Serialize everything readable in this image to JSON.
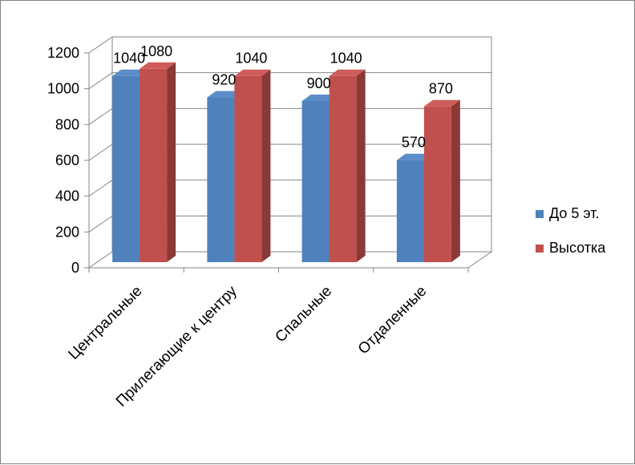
{
  "chart_data": {
    "type": "bar",
    "title": "",
    "xlabel": "",
    "ylabel": "",
    "categories": [
      "Центральные",
      "Прилегающие к центру",
      "Спальные",
      "Отдаленные"
    ],
    "series": [
      {
        "name": "До 5 эт.",
        "values": [
          1040,
          920,
          900,
          570
        ],
        "color": "#4F81BD",
        "side": "#3A6497",
        "top": "#5B8DC8"
      },
      {
        "name": "Высотка",
        "values": [
          1080,
          1040,
          1040,
          870
        ],
        "color": "#C0504D",
        "side": "#8C3836",
        "top": "#CF5C58"
      }
    ],
    "ylim": [
      0,
      1200
    ],
    "yticks": [
      "0",
      "200",
      "400",
      "600",
      "800",
      "1000",
      "1200"
    ],
    "grid": true,
    "legend": "right"
  }
}
